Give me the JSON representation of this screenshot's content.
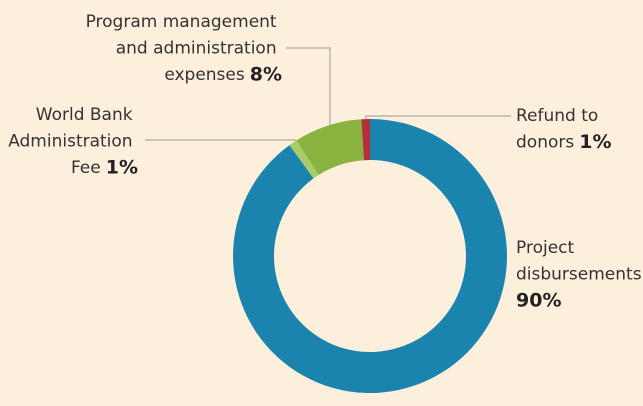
{
  "chart_data": {
    "type": "donut",
    "categories": [
      "Project disbursements",
      "World Bank Administration Fee",
      "Program management and administration expenses",
      "Refund to donors"
    ],
    "values": [
      90,
      1,
      8,
      1
    ],
    "value_labels": [
      "90%",
      "1%",
      "8%",
      "1%"
    ],
    "colors": [
      "#1a84af",
      "#a9cb6a",
      "#89b23f",
      "#b4313b"
    ]
  }
}
